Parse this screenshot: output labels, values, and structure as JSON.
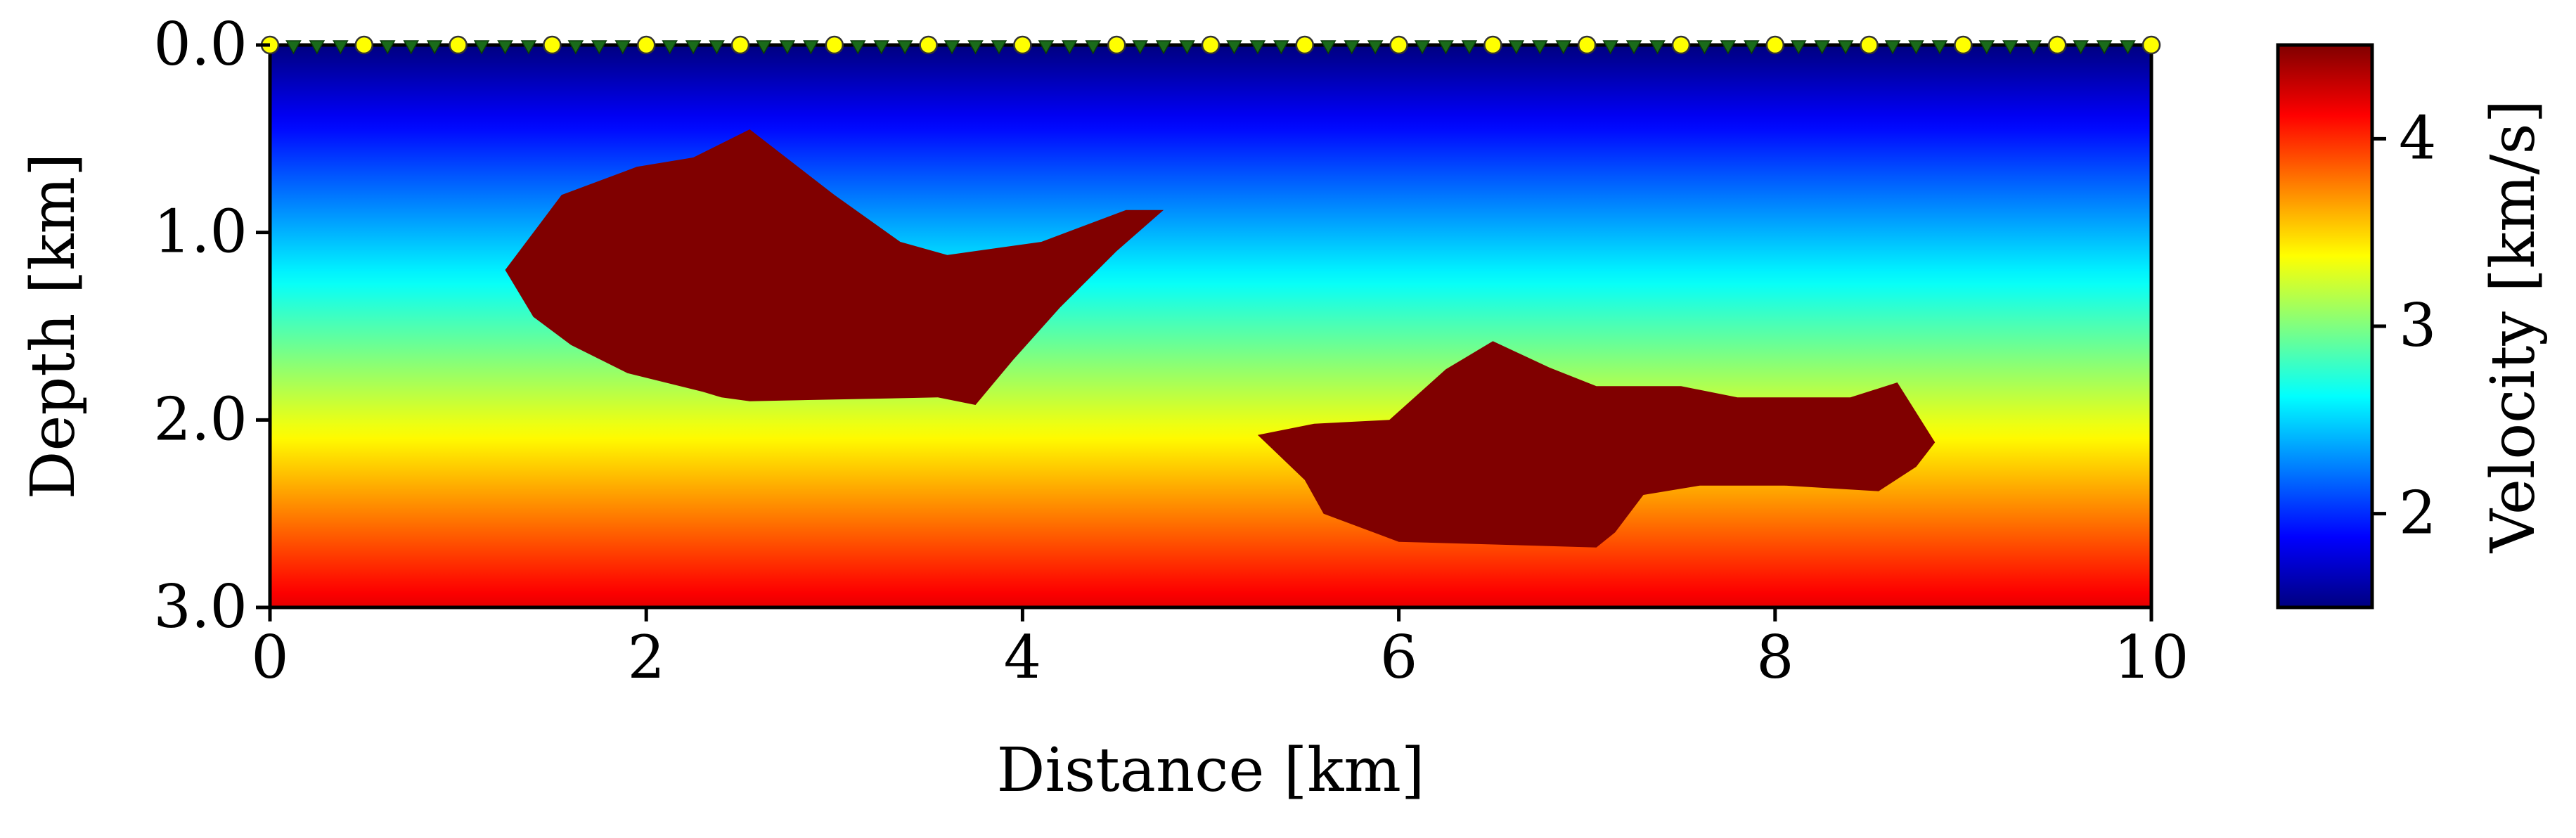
{
  "chart_data": {
    "type": "heatmap",
    "xlabel": "Distance [km]",
    "ylabel": "Depth [km]",
    "xlim": [
      0,
      10
    ],
    "ylim": [
      3.0,
      0.0
    ],
    "x_ticks": [
      0,
      2,
      4,
      6,
      8,
      10
    ],
    "x_tick_labels": [
      "0",
      "2",
      "4",
      "6",
      "8",
      "10"
    ],
    "y_ticks": [
      0.0,
      1.0,
      2.0,
      3.0
    ],
    "y_tick_labels": [
      "0.0",
      "1.0",
      "2.0",
      "3.0"
    ],
    "colorbar": {
      "label": "Velocity [km/s]",
      "colormap": "jet",
      "range": [
        1.5,
        4.5
      ],
      "ticks": [
        2,
        3,
        4
      ],
      "tick_labels": [
        "2",
        "3",
        "4"
      ]
    },
    "background_velocity_gradient": [
      {
        "depth": 0.0,
        "velocity": 1.5
      },
      {
        "depth": 3.0,
        "velocity": 4.2
      }
    ],
    "anomalies": [
      {
        "velocity": 4.5,
        "color": "#800000",
        "outline": [
          [
            1.25,
            1.2
          ],
          [
            1.55,
            0.8
          ],
          [
            1.95,
            0.65
          ],
          [
            2.25,
            0.6
          ],
          [
            2.55,
            0.45
          ],
          [
            3.0,
            0.8
          ],
          [
            3.35,
            1.05
          ],
          [
            3.6,
            1.12
          ],
          [
            4.1,
            1.05
          ],
          [
            4.55,
            0.88
          ],
          [
            4.75,
            0.88
          ],
          [
            4.5,
            1.1
          ],
          [
            4.2,
            1.4
          ],
          [
            3.95,
            1.68
          ],
          [
            3.75,
            1.92
          ],
          [
            3.55,
            1.88
          ],
          [
            2.55,
            1.9
          ],
          [
            2.4,
            1.88
          ],
          [
            2.3,
            1.85
          ],
          [
            1.9,
            1.75
          ],
          [
            1.6,
            1.6
          ],
          [
            1.4,
            1.45
          ]
        ]
      },
      {
        "velocity": 4.5,
        "color": "#800000",
        "outline": [
          [
            5.25,
            2.08
          ],
          [
            5.55,
            2.02
          ],
          [
            5.95,
            2.0
          ],
          [
            6.25,
            1.73
          ],
          [
            6.5,
            1.58
          ],
          [
            6.8,
            1.72
          ],
          [
            7.05,
            1.82
          ],
          [
            7.5,
            1.82
          ],
          [
            7.8,
            1.88
          ],
          [
            8.4,
            1.88
          ],
          [
            8.65,
            1.8
          ],
          [
            8.85,
            2.12
          ],
          [
            8.75,
            2.25
          ],
          [
            8.55,
            2.38
          ],
          [
            8.05,
            2.35
          ],
          [
            7.6,
            2.35
          ],
          [
            7.3,
            2.4
          ],
          [
            7.15,
            2.6
          ],
          [
            7.05,
            2.68
          ],
          [
            6.0,
            2.65
          ],
          [
            5.6,
            2.5
          ],
          [
            5.5,
            2.32
          ]
        ]
      }
    ],
    "sources": {
      "color": "#ffff00",
      "depth": 0.0,
      "x": [
        0,
        0.5,
        1.0,
        1.5,
        2.0,
        2.5,
        3.0,
        3.5,
        4.0,
        4.5,
        5.0,
        5.5,
        6.0,
        6.5,
        7.0,
        7.5,
        8.0,
        8.5,
        9.0,
        9.5,
        10.0
      ]
    },
    "receivers": {
      "color": "#1a6b1a",
      "depth": 0.0,
      "spacing": 0.125,
      "range": [
        0,
        10
      ]
    },
    "grid": false
  }
}
